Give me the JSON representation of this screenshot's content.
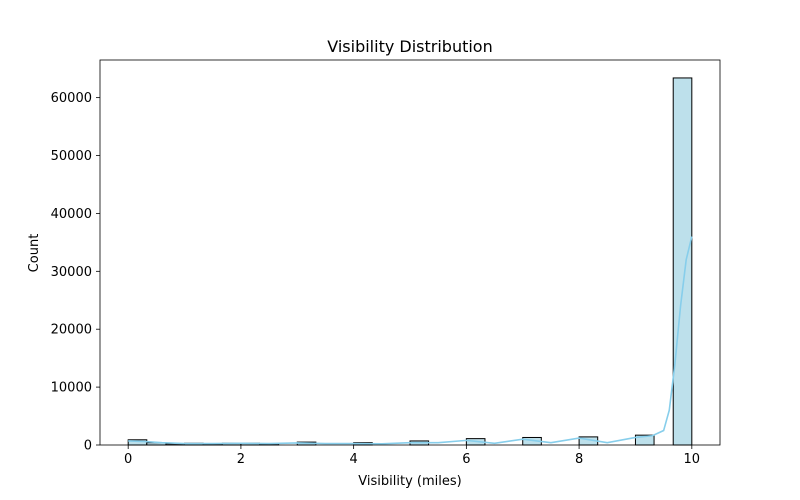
{
  "chart_data": {
    "type": "bar",
    "title": "Visibility Distribution",
    "xlabel": "Visibility (miles)",
    "ylabel": "Count",
    "xlim": [
      -0.5,
      10.5
    ],
    "ylim": [
      0,
      66500
    ],
    "xticks": [
      0,
      2,
      4,
      6,
      8,
      10
    ],
    "yticks": [
      0,
      10000,
      20000,
      30000,
      40000,
      50000,
      60000
    ],
    "xtick_labels": [
      "0",
      "2",
      "4",
      "6",
      "8",
      "10"
    ],
    "ytick_labels": [
      "0",
      "10000",
      "20000",
      "30000",
      "40000",
      "50000",
      "60000"
    ],
    "bin_width": 0.3333,
    "bins": [
      {
        "x0": 0.0,
        "x1": 0.33,
        "count": 900
      },
      {
        "x0": 0.33,
        "x1": 0.67,
        "count": 400
      },
      {
        "x0": 0.67,
        "x1": 1.0,
        "count": 200
      },
      {
        "x0": 1.0,
        "x1": 1.33,
        "count": 300
      },
      {
        "x0": 1.33,
        "x1": 1.67,
        "count": 200
      },
      {
        "x0": 1.67,
        "x1": 2.0,
        "count": 300
      },
      {
        "x0": 2.0,
        "x1": 2.33,
        "count": 300
      },
      {
        "x0": 2.33,
        "x1": 2.67,
        "count": 200
      },
      {
        "x0": 3.0,
        "x1": 3.33,
        "count": 500
      },
      {
        "x0": 4.0,
        "x1": 4.33,
        "count": 400
      },
      {
        "x0": 5.0,
        "x1": 5.33,
        "count": 700
      },
      {
        "x0": 6.0,
        "x1": 6.33,
        "count": 1100
      },
      {
        "x0": 7.0,
        "x1": 7.33,
        "count": 1300
      },
      {
        "x0": 8.0,
        "x1": 8.33,
        "count": 1400
      },
      {
        "x0": 9.0,
        "x1": 9.33,
        "count": 1700
      },
      {
        "x0": 9.67,
        "x1": 10.0,
        "count": 63400
      }
    ],
    "kde": {
      "x": [
        0,
        0.3,
        0.6,
        1.0,
        1.5,
        2.0,
        2.5,
        3.0,
        3.5,
        4.0,
        4.5,
        5.0,
        5.5,
        6.0,
        6.5,
        7.0,
        7.5,
        8.0,
        8.5,
        9.0,
        9.3,
        9.5,
        9.6,
        9.7,
        9.8,
        9.9,
        10.0
      ],
      "y": [
        700,
        600,
        400,
        250,
        250,
        300,
        250,
        350,
        250,
        250,
        200,
        400,
        400,
        800,
        300,
        1000,
        400,
        1200,
        400,
        1300,
        1600,
        2500,
        6000,
        14000,
        24000,
        32000,
        36000
      ]
    },
    "bar_color": "#add8e6",
    "bar_edge_color": "#000000",
    "kde_color": "#87ceeb",
    "grid": false,
    "legend": "none"
  }
}
